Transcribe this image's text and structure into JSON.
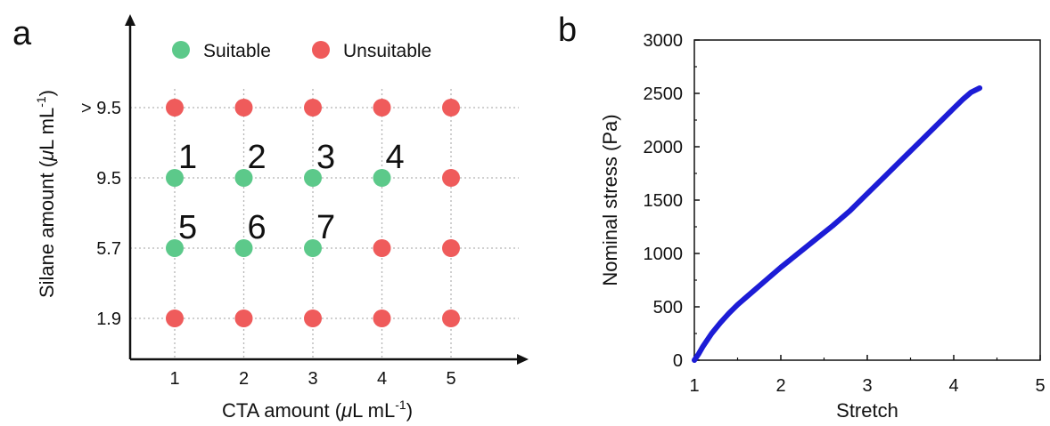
{
  "chart_data": [
    {
      "panel_label": "a",
      "type": "scatter",
      "xlabel_prefix": "CTA amount (",
      "xlabel_mu": "μ",
      "xlabel_unit": "L mL",
      "xlabel_exp": "-1",
      "xlabel_suffix": ")",
      "ylabel_prefix": "Silane amount (",
      "ylabel_mu": "μ",
      "ylabel_unit": "L mL",
      "ylabel_exp": "-1",
      "ylabel_suffix": ")",
      "x_ticks": [
        "1",
        "2",
        "3",
        "4",
        "5"
      ],
      "y_ticks": [
        "1.9",
        "5.7",
        "9.5",
        "> 9.5"
      ],
      "legend": [
        {
          "label": "Suitable",
          "color": "#5cc98a"
        },
        {
          "label": "Unsuitable",
          "color": "#ef5b5b"
        }
      ],
      "colors": {
        "suitable": "#5cc98a",
        "unsuitable": "#ef5b5b",
        "grid": "#b5b5b5"
      },
      "points": [
        {
          "x": 1,
          "y": "1.9",
          "status": "unsuitable"
        },
        {
          "x": 2,
          "y": "1.9",
          "status": "unsuitable"
        },
        {
          "x": 3,
          "y": "1.9",
          "status": "unsuitable"
        },
        {
          "x": 4,
          "y": "1.9",
          "status": "unsuitable"
        },
        {
          "x": 5,
          "y": "1.9",
          "status": "unsuitable"
        },
        {
          "x": 1,
          "y": "5.7",
          "status": "suitable",
          "label": "5"
        },
        {
          "x": 2,
          "y": "5.7",
          "status": "suitable",
          "label": "6"
        },
        {
          "x": 3,
          "y": "5.7",
          "status": "suitable",
          "label": "7"
        },
        {
          "x": 4,
          "y": "5.7",
          "status": "unsuitable"
        },
        {
          "x": 5,
          "y": "5.7",
          "status": "unsuitable"
        },
        {
          "x": 1,
          "y": "9.5",
          "status": "suitable",
          "label": "1"
        },
        {
          "x": 2,
          "y": "9.5",
          "status": "suitable",
          "label": "2"
        },
        {
          "x": 3,
          "y": "9.5",
          "status": "suitable",
          "label": "3"
        },
        {
          "x": 4,
          "y": "9.5",
          "status": "suitable",
          "label": "4"
        },
        {
          "x": 5,
          "y": "9.5",
          "status": "unsuitable"
        },
        {
          "x": 1,
          "y": "> 9.5",
          "status": "unsuitable"
        },
        {
          "x": 2,
          "y": "> 9.5",
          "status": "unsuitable"
        },
        {
          "x": 3,
          "y": "> 9.5",
          "status": "unsuitable"
        },
        {
          "x": 4,
          "y": "> 9.5",
          "status": "unsuitable"
        },
        {
          "x": 5,
          "y": "> 9.5",
          "status": "unsuitable"
        }
      ]
    },
    {
      "panel_label": "b",
      "type": "line",
      "xlabel": "Stretch",
      "ylabel": "Nominal stress (Pa)",
      "xlim": [
        1,
        5
      ],
      "ylim": [
        0,
        3000
      ],
      "x_ticks": [
        1,
        2,
        3,
        4,
        5
      ],
      "y_ticks": [
        0,
        500,
        1000,
        1500,
        2000,
        2500,
        3000
      ],
      "grid": false,
      "series": [
        {
          "color": "#1c1cd6",
          "x": [
            1.0,
            1.05,
            1.1,
            1.2,
            1.3,
            1.4,
            1.5,
            1.6,
            1.7,
            1.8,
            1.9,
            2.0,
            2.2,
            2.4,
            2.6,
            2.8,
            3.0,
            3.2,
            3.4,
            3.6,
            3.8,
            4.0,
            4.1,
            4.2,
            4.3
          ],
          "y": [
            0,
            60,
            130,
            250,
            350,
            440,
            520,
            590,
            660,
            730,
            800,
            870,
            1000,
            1130,
            1260,
            1400,
            1560,
            1720,
            1880,
            2040,
            2200,
            2360,
            2440,
            2510,
            2550
          ]
        }
      ]
    }
  ]
}
